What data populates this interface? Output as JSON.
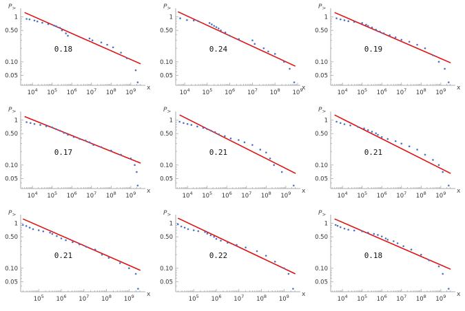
{
  "axis": {
    "y_label_main": "P",
    "y_label_sub": ">",
    "x_label": "x",
    "y_ticks": [
      {
        "value": 1,
        "label": "1"
      },
      {
        "value": 0.5,
        "label": "0.50"
      },
      {
        "value": 0.1,
        "label": "0.10"
      },
      {
        "value": 0.05,
        "label": "0.05"
      }
    ],
    "x_tick_labels": {
      "4": "10^4",
      "5": "10^5",
      "6": "10^6",
      "7": "10^7",
      "8": "10^8",
      "9": "10^9"
    },
    "scale": "log-log"
  },
  "colors": {
    "points": "#4a72c4",
    "fit_line": "#e01010",
    "axes": "#aaaaaa",
    "text": "#333333"
  },
  "chart_data": [
    {
      "type": "scatter",
      "annotation": "0.18",
      "xlim": [
        3.4,
        9.6
      ],
      "ylim": [
        0.03,
        1.35
      ],
      "x_ticks": [
        4,
        5,
        6,
        7,
        8,
        9
      ],
      "fit": {
        "x": [
          3.6,
          9.5
        ],
        "y": [
          1.25,
          0.09
        ]
      },
      "points": [
        [
          3.7,
          0.9
        ],
        [
          3.85,
          0.88
        ],
        [
          4.1,
          0.83
        ],
        [
          4.25,
          0.79
        ],
        [
          4.5,
          0.74
        ],
        [
          4.8,
          0.69
        ],
        [
          5.1,
          0.64
        ],
        [
          5.2,
          0.62
        ],
        [
          5.4,
          0.57
        ],
        [
          5.5,
          0.5
        ],
        [
          5.7,
          0.43
        ],
        [
          5.8,
          0.38
        ],
        [
          6.9,
          0.33
        ],
        [
          7.05,
          0.3
        ],
        [
          7.5,
          0.27
        ],
        [
          7.8,
          0.24
        ],
        [
          8.1,
          0.21
        ],
        [
          8.5,
          0.16
        ],
        [
          8.8,
          0.12
        ],
        [
          9.25,
          0.065
        ],
        [
          9.35,
          0.035
        ]
      ]
    },
    {
      "type": "scatter",
      "annotation": "0.24",
      "xlim": [
        3.6,
        9.0
      ],
      "ylim": [
        0.03,
        1.35
      ],
      "x_ticks": [
        4,
        5,
        6,
        7,
        8,
        9
      ],
      "fit": {
        "x": [
          3.7,
          8.9
        ],
        "y": [
          1.3,
          0.08
        ]
      },
      "points": [
        [
          3.8,
          0.93
        ],
        [
          4.1,
          0.85
        ],
        [
          4.4,
          0.83
        ],
        [
          4.6,
          0.8
        ],
        [
          5.1,
          0.73
        ],
        [
          5.2,
          0.68
        ],
        [
          5.3,
          0.63
        ],
        [
          5.4,
          0.59
        ],
        [
          5.5,
          0.55
        ],
        [
          5.6,
          0.5
        ],
        [
          5.8,
          0.45
        ],
        [
          6.0,
          0.38
        ],
        [
          6.4,
          0.32
        ],
        [
          7.0,
          0.3
        ],
        [
          7.1,
          0.25
        ],
        [
          7.5,
          0.2
        ],
        [
          7.7,
          0.17
        ],
        [
          8.0,
          0.15
        ],
        [
          8.4,
          0.1
        ],
        [
          8.65,
          0.07
        ],
        [
          8.85,
          0.035
        ]
      ]
    },
    {
      "type": "scatter",
      "annotation": "0.19",
      "xlim": [
        3.4,
        9.6
      ],
      "ylim": [
        0.03,
        1.35
      ],
      "x_ticks": [
        4,
        5,
        6,
        7,
        8,
        9
      ],
      "fit": {
        "x": [
          3.6,
          9.5
        ],
        "y": [
          1.25,
          0.095
        ]
      },
      "points": [
        [
          3.7,
          0.93
        ],
        [
          3.9,
          0.88
        ],
        [
          4.1,
          0.84
        ],
        [
          4.3,
          0.8
        ],
        [
          4.6,
          0.77
        ],
        [
          5.0,
          0.73
        ],
        [
          5.2,
          0.67
        ],
        [
          5.3,
          0.63
        ],
        [
          5.5,
          0.58
        ],
        [
          5.7,
          0.52
        ],
        [
          5.9,
          0.47
        ],
        [
          6.1,
          0.43
        ],
        [
          6.4,
          0.39
        ],
        [
          6.7,
          0.35
        ],
        [
          7.0,
          0.31
        ],
        [
          7.4,
          0.28
        ],
        [
          7.8,
          0.24
        ],
        [
          8.2,
          0.2
        ],
        [
          8.6,
          0.14
        ],
        [
          8.9,
          0.1
        ],
        [
          9.2,
          0.07
        ],
        [
          9.4,
          0.035
        ]
      ]
    },
    {
      "type": "scatter",
      "annotation": "0.17",
      "xlim": [
        3.4,
        9.6
      ],
      "ylim": [
        0.03,
        1.35
      ],
      "x_ticks": [
        4,
        5,
        6,
        7,
        8,
        9
      ],
      "fit": {
        "x": [
          3.6,
          9.5
        ],
        "y": [
          1.2,
          0.11
        ]
      },
      "points": [
        [
          3.7,
          0.9
        ],
        [
          3.9,
          0.86
        ],
        [
          4.1,
          0.82
        ],
        [
          4.4,
          0.78
        ],
        [
          4.7,
          0.73
        ],
        [
          5.0,
          0.69
        ],
        [
          5.2,
          0.63
        ],
        [
          5.4,
          0.58
        ],
        [
          5.6,
          0.52
        ],
        [
          5.8,
          0.47
        ],
        [
          6.1,
          0.42
        ],
        [
          6.4,
          0.38
        ],
        [
          6.7,
          0.35
        ],
        [
          6.9,
          0.32
        ],
        [
          7.1,
          0.28
        ],
        [
          7.5,
          0.25
        ],
        [
          8.0,
          0.21
        ],
        [
          8.5,
          0.17
        ],
        [
          9.0,
          0.14
        ],
        [
          9.2,
          0.1
        ],
        [
          9.3,
          0.07
        ],
        [
          9.35,
          0.035
        ]
      ]
    },
    {
      "type": "scatter",
      "annotation": "0.21",
      "xlim": [
        3.4,
        9.6
      ],
      "ylim": [
        0.03,
        1.35
      ],
      "x_ticks": [
        4,
        5,
        6,
        7,
        8,
        9
      ],
      "fit": {
        "x": [
          3.6,
          9.5
        ],
        "y": [
          1.3,
          0.065
        ]
      },
      "points": [
        [
          3.6,
          0.92
        ],
        [
          3.8,
          0.86
        ],
        [
          4.0,
          0.82
        ],
        [
          4.2,
          0.78
        ],
        [
          4.5,
          0.72
        ],
        [
          4.8,
          0.67
        ],
        [
          5.0,
          0.63
        ],
        [
          5.2,
          0.58
        ],
        [
          5.4,
          0.54
        ],
        [
          5.6,
          0.48
        ],
        [
          5.9,
          0.44
        ],
        [
          6.2,
          0.39
        ],
        [
          6.6,
          0.36
        ],
        [
          6.9,
          0.32
        ],
        [
          7.3,
          0.28
        ],
        [
          7.7,
          0.22
        ],
        [
          8.0,
          0.19
        ],
        [
          8.2,
          0.14
        ],
        [
          8.4,
          0.1
        ],
        [
          8.8,
          0.07
        ],
        [
          9.4,
          0.035
        ]
      ]
    },
    {
      "type": "scatter",
      "annotation": "0.21",
      "xlim": [
        3.4,
        9.6
      ],
      "ylim": [
        0.03,
        1.35
      ],
      "x_ticks": [
        4,
        5,
        6,
        7,
        8,
        9
      ],
      "fit": {
        "x": [
          3.6,
          9.5
        ],
        "y": [
          1.3,
          0.065
        ]
      },
      "points": [
        [
          3.7,
          0.92
        ],
        [
          3.9,
          0.86
        ],
        [
          4.1,
          0.81
        ],
        [
          4.4,
          0.76
        ],
        [
          4.8,
          0.7
        ],
        [
          5.1,
          0.65
        ],
        [
          5.3,
          0.6
        ],
        [
          5.5,
          0.55
        ],
        [
          5.7,
          0.51
        ],
        [
          5.8,
          0.47
        ],
        [
          6.0,
          0.42
        ],
        [
          6.3,
          0.38
        ],
        [
          6.7,
          0.34
        ],
        [
          7.0,
          0.3
        ],
        [
          7.4,
          0.26
        ],
        [
          7.8,
          0.22
        ],
        [
          8.2,
          0.17
        ],
        [
          8.6,
          0.13
        ],
        [
          8.9,
          0.1
        ],
        [
          9.1,
          0.07
        ],
        [
          9.4,
          0.035
        ]
      ]
    },
    {
      "type": "scatter",
      "annotation": "0.21",
      "xlim": [
        4.2,
        9.6
      ],
      "ylim": [
        0.03,
        1.35
      ],
      "x_ticks": [
        5,
        6,
        7,
        8,
        9
      ],
      "fit": {
        "x": [
          4.3,
          9.5
        ],
        "y": [
          1.25,
          0.09
        ]
      },
      "points": [
        [
          4.3,
          0.92
        ],
        [
          4.45,
          0.87
        ],
        [
          4.6,
          0.8
        ],
        [
          4.75,
          0.74
        ],
        [
          5.0,
          0.7
        ],
        [
          5.2,
          0.66
        ],
        [
          5.5,
          0.62
        ],
        [
          5.6,
          0.58
        ],
        [
          5.8,
          0.52
        ],
        [
          6.0,
          0.46
        ],
        [
          6.2,
          0.42
        ],
        [
          6.5,
          0.38
        ],
        [
          6.8,
          0.34
        ],
        [
          7.1,
          0.3
        ],
        [
          7.5,
          0.26
        ],
        [
          7.8,
          0.2
        ],
        [
          8.1,
          0.17
        ],
        [
          8.6,
          0.13
        ],
        [
          9.0,
          0.1
        ],
        [
          9.3,
          0.075
        ],
        [
          9.4,
          0.035
        ]
      ]
    },
    {
      "type": "scatter",
      "annotation": "0.22",
      "xlim": [
        4.2,
        9.6
      ],
      "ylim": [
        0.03,
        1.35
      ],
      "x_ticks": [
        5,
        6,
        7,
        8,
        9
      ],
      "fit": {
        "x": [
          4.3,
          9.5
        ],
        "y": [
          1.3,
          0.075
        ]
      },
      "points": [
        [
          4.3,
          0.95
        ],
        [
          4.45,
          0.85
        ],
        [
          4.6,
          0.8
        ],
        [
          4.75,
          0.74
        ],
        [
          5.0,
          0.7
        ],
        [
          5.2,
          0.67
        ],
        [
          5.5,
          0.64
        ],
        [
          5.6,
          0.59
        ],
        [
          5.75,
          0.54
        ],
        [
          5.9,
          0.5
        ],
        [
          6.0,
          0.45
        ],
        [
          6.2,
          0.41
        ],
        [
          6.5,
          0.37
        ],
        [
          6.9,
          0.33
        ],
        [
          7.3,
          0.29
        ],
        [
          7.8,
          0.24
        ],
        [
          8.2,
          0.19
        ],
        [
          8.6,
          0.14
        ],
        [
          9.0,
          0.1
        ],
        [
          9.2,
          0.075
        ],
        [
          9.4,
          0.035
        ]
      ]
    },
    {
      "type": "scatter",
      "annotation": "0.18",
      "xlim": [
        3.4,
        9.6
      ],
      "ylim": [
        0.03,
        1.35
      ],
      "x_ticks": [
        4,
        5,
        6,
        7,
        8,
        9
      ],
      "fit": {
        "x": [
          3.6,
          9.5
        ],
        "y": [
          1.25,
          0.095
        ]
      },
      "points": [
        [
          3.65,
          0.92
        ],
        [
          3.75,
          0.88
        ],
        [
          3.9,
          0.82
        ],
        [
          4.1,
          0.76
        ],
        [
          4.3,
          0.72
        ],
        [
          4.6,
          0.69
        ],
        [
          5.0,
          0.66
        ],
        [
          5.3,
          0.62
        ],
        [
          5.6,
          0.58
        ],
        [
          5.8,
          0.55
        ],
        [
          6.0,
          0.51
        ],
        [
          6.2,
          0.46
        ],
        [
          6.3,
          0.43
        ],
        [
          6.6,
          0.4
        ],
        [
          6.8,
          0.36
        ],
        [
          7.1,
          0.31
        ],
        [
          7.5,
          0.26
        ],
        [
          8.0,
          0.2
        ],
        [
          8.4,
          0.15
        ],
        [
          8.9,
          0.11
        ],
        [
          9.1,
          0.075
        ],
        [
          9.4,
          0.035
        ]
      ]
    }
  ]
}
